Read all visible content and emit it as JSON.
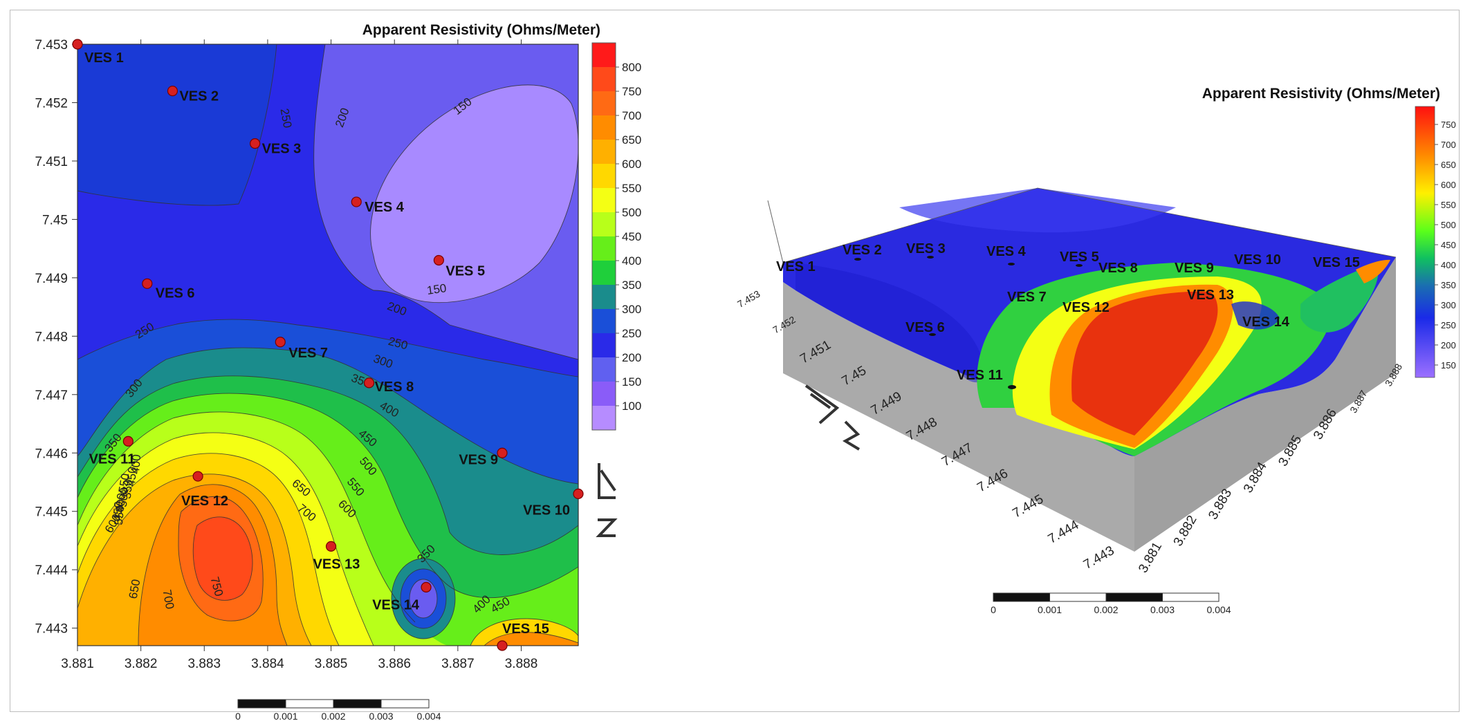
{
  "colors": {
    "frame": "#bdbdbd",
    "point": "#d62020",
    "side": "#a9a9a9",
    "north": "#333333"
  },
  "chart_data": [
    {
      "type": "contour",
      "title": "Apparent Resistivity (Ohms/Meter)",
      "xlabel": "",
      "ylabel": "",
      "xlim": [
        3.881,
        3.8889
      ],
      "ylim": [
        7.4427,
        7.453
      ],
      "x_ticks": [
        "3.881",
        "3.882",
        "3.883",
        "3.884",
        "3.885",
        "3.886",
        "3.887",
        "3.888"
      ],
      "y_ticks": [
        "7.453",
        "7.452",
        "7.451",
        "7.45",
        "7.449",
        "7.448",
        "7.447",
        "7.446",
        "7.445",
        "7.444",
        "7.443"
      ],
      "colorbar": {
        "labels": [
          "800",
          "750",
          "700",
          "650",
          "600",
          "550",
          "500",
          "450",
          "400",
          "350",
          "300",
          "250",
          "200",
          "150",
          "100"
        ],
        "colors": [
          "#ff1a1a",
          "#ff4a1a",
          "#ff6a14",
          "#ff8c00",
          "#ffb000",
          "#ffd800",
          "#f4ff14",
          "#b8ff1a",
          "#66ee1a",
          "#1fcf3b",
          "#1a8c8c",
          "#1a4fd8",
          "#2a2ae8",
          "#6060f0",
          "#8a5cf8",
          "#b68cff"
        ]
      },
      "contour_labels": [
        "150",
        "150",
        "200",
        "200",
        "250",
        "250",
        "250",
        "300",
        "300",
        "350",
        "350",
        "400",
        "400",
        "450",
        "450",
        "500",
        "550",
        "550",
        "600",
        "600",
        "650",
        "650",
        "700",
        "700",
        "750",
        "350",
        "400",
        "450",
        "350",
        "400",
        "450",
        "500",
        "550"
      ],
      "points": [
        {
          "name": "VES 1",
          "x": 3.881,
          "y": 7.453
        },
        {
          "name": "VES 2",
          "x": 3.8825,
          "y": 7.4522
        },
        {
          "name": "VES 3",
          "x": 3.8838,
          "y": 7.4513
        },
        {
          "name": "VES 4",
          "x": 3.8854,
          "y": 7.4503
        },
        {
          "name": "VES 5",
          "x": 3.8867,
          "y": 7.4493
        },
        {
          "name": "VES 6",
          "x": 3.8821,
          "y": 7.4489
        },
        {
          "name": "VES 7",
          "x": 3.8842,
          "y": 7.4479
        },
        {
          "name": "VES 8",
          "x": 3.8856,
          "y": 7.4472
        },
        {
          "name": "VES 9",
          "x": 3.8877,
          "y": 7.446
        },
        {
          "name": "VES 10",
          "x": 3.8889,
          "y": 7.4453
        },
        {
          "name": "VES 11",
          "x": 3.8818,
          "y": 7.4462
        },
        {
          "name": "VES 12",
          "x": 3.8829,
          "y": 7.4456
        },
        {
          "name": "VES 13",
          "x": 3.885,
          "y": 7.4444
        },
        {
          "name": "VES 14",
          "x": 3.8865,
          "y": 7.4437
        },
        {
          "name": "VES 15",
          "x": 3.8877,
          "y": 7.4427
        }
      ],
      "scale_bar": {
        "labels": [
          "0",
          "0.001",
          "0.002",
          "0.003",
          "0.004"
        ]
      }
    },
    {
      "type": "surface",
      "title": "Apparent Resistivity (Ohms/Meter)",
      "xlabel": "",
      "ylabel": "",
      "x_ticks": [
        "3.881",
        "3.882",
        "3.883",
        "3.884",
        "3.885",
        "3.886",
        "3.887",
        "3.888"
      ],
      "y_ticks": [
        "7.443",
        "7.444",
        "7.445",
        "7.446",
        "7.447",
        "7.448",
        "7.449",
        "7.45",
        "7.451",
        "7.452",
        "7.453"
      ],
      "colorbar": {
        "labels": [
          "750",
          "700",
          "650",
          "600",
          "550",
          "500",
          "450",
          "400",
          "350",
          "300",
          "250",
          "200",
          "150"
        ]
      },
      "point_labels": [
        "VES 1",
        "VES 2",
        "VES 3",
        "VES 4",
        "VES 5",
        "VES 8",
        "VES 9",
        "VES 10",
        "VES 15",
        "VES 7",
        "VES 12",
        "VES 13",
        "VES 14",
        "VES 6",
        "VES 11"
      ],
      "scale_bar": {
        "labels": [
          "0",
          "0.001",
          "0.002",
          "0.003",
          "0.004"
        ]
      }
    }
  ]
}
